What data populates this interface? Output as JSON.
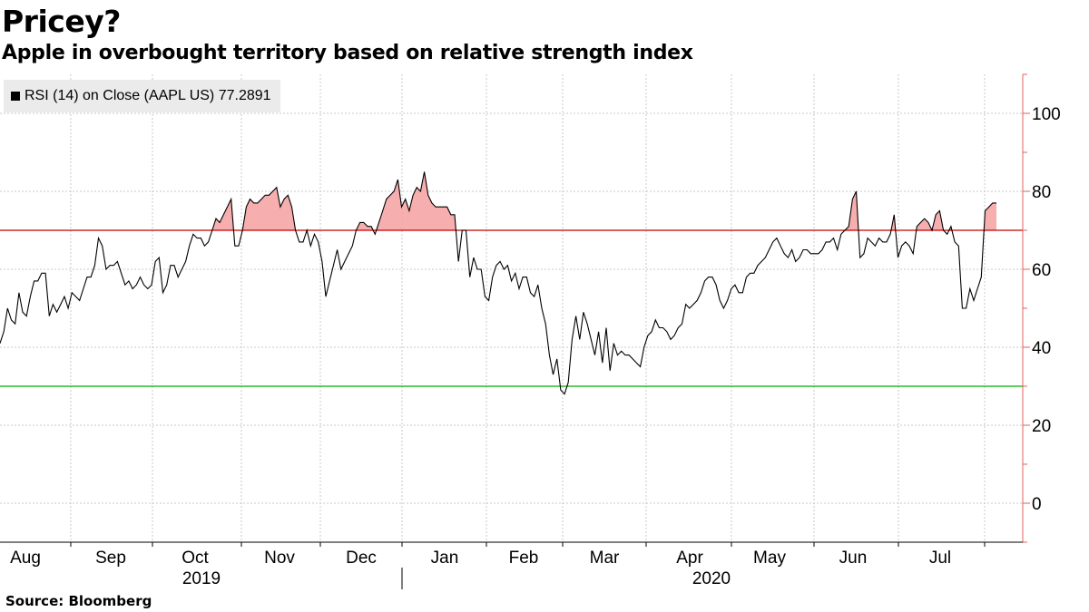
{
  "title": "Pricey?",
  "subtitle": "Apple in overbought territory based on relative strength index",
  "source": "Source:  Bloomberg",
  "legend": {
    "label": "RSI (14)  on Close (AAPL US) 77.2891"
  },
  "colors": {
    "line": "#000000",
    "overbought": "#c00000",
    "oversold": "#00b000",
    "fill": "#f4a0a0",
    "axis": "#e06060",
    "grid": "#c8c8c8"
  },
  "chart_data": {
    "type": "line",
    "title": "Pricey?",
    "series_name": "RSI (14) on Close (AAPL US)",
    "last_value": 77.2891,
    "ylim": [
      -10,
      110
    ],
    "yticks": [
      0,
      20,
      40,
      60,
      80,
      100
    ],
    "overbought_level": 70,
    "oversold_level": 30,
    "month_labels": [
      "Aug",
      "Sep",
      "Oct",
      "Nov",
      "Dec",
      "Jan",
      "Feb",
      "Mar",
      "Apr",
      "May",
      "Jun",
      "Jul"
    ],
    "year_labels": [
      "2019",
      "2020"
    ],
    "grid": true,
    "x_index_range": [
      0,
      255
    ],
    "values": [
      41,
      44,
      50,
      47,
      46,
      54,
      49,
      48,
      53,
      57,
      57,
      59,
      59,
      48,
      51,
      49,
      51,
      53,
      50,
      54,
      53,
      52,
      55,
      58,
      58,
      61,
      68,
      66,
      60,
      61,
      61,
      62,
      59,
      56,
      57,
      55,
      56,
      58,
      56,
      55,
      56,
      62,
      63,
      54,
      56,
      61,
      61,
      58,
      60,
      62,
      66,
      69,
      68,
      68,
      66,
      67,
      70,
      73,
      72,
      74,
      76,
      78,
      66,
      66,
      70,
      76,
      78,
      77,
      77,
      78,
      79,
      79,
      80,
      81,
      76,
      78,
      79,
      76,
      70,
      67,
      67,
      70,
      66,
      69,
      67,
      62,
      53,
      57,
      61,
      65,
      60,
      62,
      64,
      66,
      70,
      72,
      72,
      71,
      71,
      69,
      72,
      75,
      78,
      79,
      80,
      83,
      76,
      78,
      75,
      79,
      81,
      80,
      85,
      79,
      77,
      76,
      76,
      76,
      76,
      74,
      74,
      62,
      70,
      70,
      58,
      63,
      60,
      60,
      53,
      52,
      58,
      61,
      62,
      60,
      61,
      57,
      59,
      55,
      58,
      58,
      54,
      53,
      56,
      50,
      46,
      38,
      33,
      37,
      29,
      28,
      31,
      42,
      48,
      42,
      49,
      46,
      42,
      38,
      44,
      36,
      45,
      34,
      41,
      38,
      39,
      38,
      38,
      37,
      36,
      35,
      40,
      43,
      44,
      47,
      45,
      45,
      44,
      42,
      43,
      45,
      46,
      51,
      50,
      51,
      52,
      54,
      57,
      58,
      58,
      56,
      52,
      50,
      52,
      55,
      56,
      54,
      54,
      58,
      59,
      59,
      61,
      62,
      63,
      65,
      67,
      68,
      66,
      64,
      63,
      65,
      62,
      63,
      65,
      65,
      64,
      64,
      64,
      65,
      67,
      67,
      68,
      65,
      69,
      70,
      71,
      78,
      80,
      63,
      64,
      68,
      67,
      66,
      68,
      67,
      67,
      69,
      74,
      63,
      66,
      67,
      66,
      64,
      71,
      72,
      73,
      72,
      70,
      74,
      75,
      70,
      69,
      71,
      67,
      66,
      50,
      50,
      55,
      52,
      55,
      58,
      75,
      76,
      77,
      77
    ]
  }
}
